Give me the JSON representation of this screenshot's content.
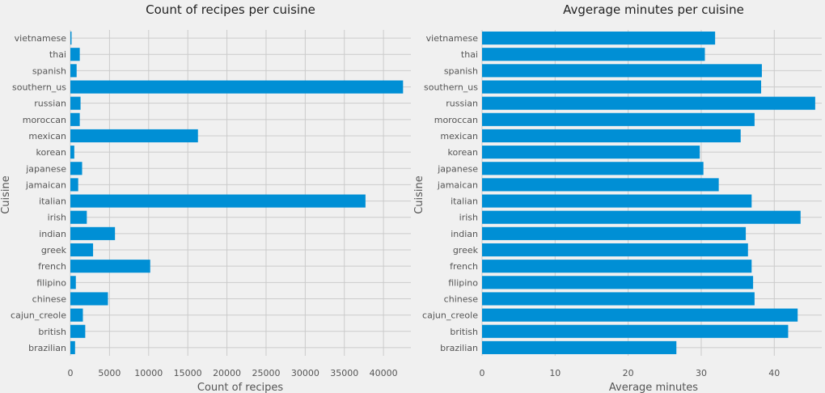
{
  "chart_data": [
    {
      "type": "bar",
      "orientation": "horizontal",
      "title": "Count of recipes per cuisine",
      "xlabel": "Count of recipes",
      "ylabel": "Cuisine",
      "categories": [
        "brazilian",
        "british",
        "cajun_creole",
        "chinese",
        "filipino",
        "french",
        "greek",
        "indian",
        "irish",
        "italian",
        "jamaican",
        "japanese",
        "korean",
        "mexican",
        "moroccan",
        "russian",
        "southern_us",
        "spanish",
        "thai",
        "vietnamese"
      ],
      "values": [
        600,
        1900,
        1600,
        4800,
        700,
        10200,
        2900,
        5700,
        2100,
        37700,
        1000,
        1500,
        500,
        16300,
        1200,
        1300,
        42500,
        800,
        1200,
        150
      ],
      "xlim": [
        0,
        43500
      ],
      "xticks": [
        0,
        5000,
        10000,
        15000,
        20000,
        25000,
        30000,
        35000,
        40000
      ],
      "xtick_labels": [
        "0",
        "5000",
        "10000",
        "15000",
        "20000",
        "25000",
        "30000",
        "35000",
        "40000"
      ],
      "grid": true,
      "color": "#008fd5"
    },
    {
      "type": "bar",
      "orientation": "horizontal",
      "title": "Avgerage minutes per cuisine",
      "xlabel": "Average minutes",
      "ylabel": "Cuisine",
      "categories": [
        "brazilian",
        "british",
        "cajun_creole",
        "chinese",
        "filipino",
        "french",
        "greek",
        "indian",
        "irish",
        "italian",
        "jamaican",
        "japanese",
        "korean",
        "mexican",
        "moroccan",
        "russian",
        "southern_us",
        "spanish",
        "thai",
        "vietnamese"
      ],
      "values": [
        26.6,
        41.9,
        43.2,
        37.3,
        37.1,
        36.9,
        36.4,
        36.1,
        43.6,
        36.9,
        32.4,
        30.3,
        29.8,
        35.4,
        37.3,
        45.6,
        38.2,
        38.3,
        30.5,
        31.9
      ],
      "xlim": [
        0,
        46.5
      ],
      "xticks": [
        0,
        10,
        20,
        30,
        40
      ],
      "xtick_labels": [
        "0",
        "10",
        "20",
        "30",
        "40"
      ],
      "grid": true,
      "color": "#008fd5"
    }
  ]
}
